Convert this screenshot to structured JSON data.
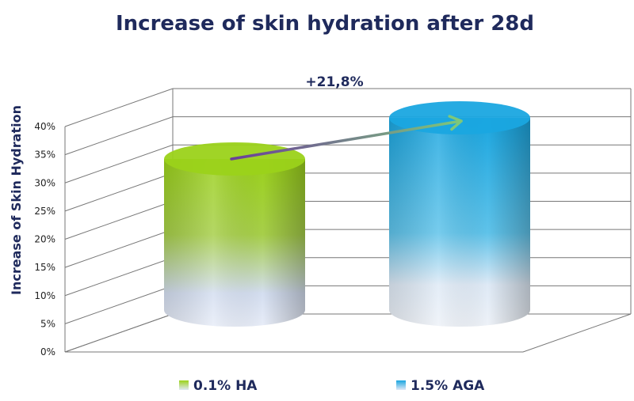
{
  "chart_data": {
    "type": "bar",
    "style": "3d-cylinder",
    "title": "Increase of skin hydration after 28d",
    "xlabel": "",
    "ylabel": "Increase of Skin Hydration",
    "ylim": [
      0,
      40
    ],
    "yticks": [
      "0%",
      "5%",
      "10%",
      "15%",
      "20%",
      "25%",
      "30%",
      "35%",
      "40%"
    ],
    "grid": true,
    "legend_position": "bottom",
    "series": [
      {
        "name": "0.1% HA",
        "value": 33.4,
        "color_top": "#9bd21a",
        "color_bottom": "#dce6f8"
      },
      {
        "name": "1.5% AGA",
        "value": 40.7,
        "color_top": "#1aa6e0",
        "color_bottom": "#e6ecf6"
      }
    ],
    "annotation": {
      "text": "+21,8%",
      "arrow_color_start": "#6a3d9a",
      "arrow_color_end": "#7ec87a"
    }
  }
}
